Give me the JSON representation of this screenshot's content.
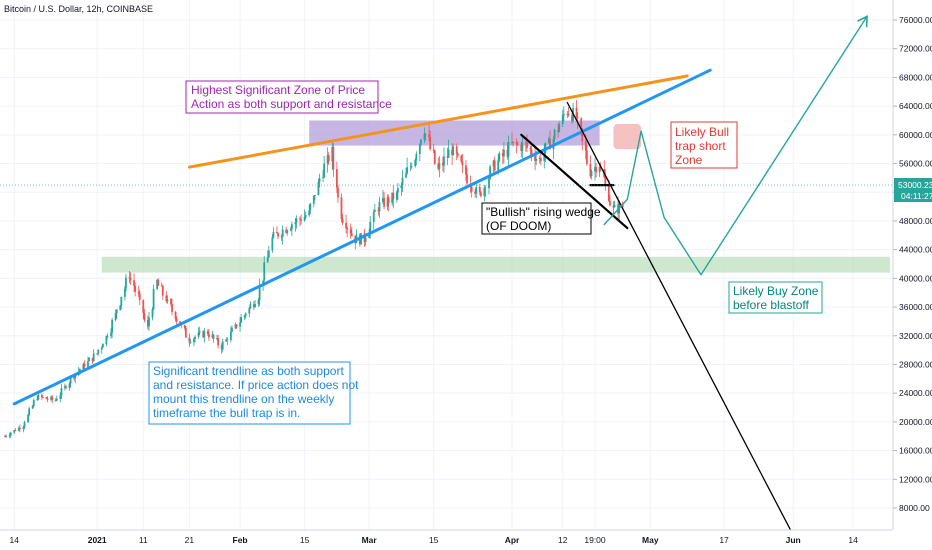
{
  "header": {
    "title": "Bitcoin / U.S. Dollar, 12h, COINBASE"
  },
  "price_axis": {
    "current_price": "53000.23",
    "countdown": "04:11:27",
    "badge_color": "#26a69a"
  },
  "colors": {
    "orange_line": "#f7931a",
    "blue_line": "#2196f3",
    "purple_zone": "#b39ddb",
    "green_zone": "#a5d6a7",
    "red_zone": "#f4b6b6",
    "teal_path": "#26a69a",
    "candle_up": "#26a69a",
    "candle_down": "#ef5350"
  },
  "annotations": {
    "purple": [
      "Highest Significant Zone of Price",
      "Action as both support and resistance"
    ],
    "blue": [
      "Significant trendline as both support",
      "and resistance.  If price action does not",
      "mount this trendline on the weekly",
      "timeframe the bull trap is in."
    ],
    "wedge": [
      "\"Bullish\" rising wedge",
      "(OF DOOM)"
    ],
    "red": [
      "Likely Bull",
      "trap short",
      "Zone"
    ],
    "green": [
      "Likely Buy Zone",
      "before blastoff"
    ]
  },
  "chart_data": {
    "type": "candlestick",
    "symbol": "Bitcoin / U.S. Dollar",
    "interval": "12h",
    "exchange": "COINBASE",
    "ylim": [
      4000,
      80000
    ],
    "y_ticks": [
      8000,
      12000,
      16000,
      20000,
      24000,
      28000,
      32000,
      36000,
      40000,
      44000,
      48000,
      52000,
      56000,
      60000,
      64000,
      68000,
      72000,
      76000
    ],
    "y_tick_labels": [
      "8000.00",
      "12000.00",
      "16000.00",
      "20000.00",
      "24000.00",
      "28000.00",
      "32000.00",
      "36000.00",
      "40000.00",
      "44000.00",
      "48000.00",
      "52000.00",
      "56000.00",
      "60000.00",
      "64000.00",
      "68000.00",
      "72000.00",
      "76000.00"
    ],
    "x_axis": {
      "start_date": "2020-12-12",
      "end_date": "2021-06-22",
      "tick_dates": [
        "2020-12-14",
        "2021-01-01",
        "2021-01-11",
        "2021-01-21",
        "2021-02-01",
        "2021-02-15",
        "2021-03-01",
        "2021-03-15",
        "2021-04-01",
        "2021-04-12",
        "2021-04-19",
        "2021-05-01",
        "2021-05-17",
        "2021-06-01",
        "2021-06-14"
      ],
      "tick_labels": [
        "14",
        "2021",
        "11",
        "21",
        "Feb",
        "15",
        "Mar",
        "15",
        "Apr",
        "12",
        "19:00",
        "May",
        "17",
        "Jun",
        "14"
      ]
    },
    "price_path": [
      [
        "2020-12-12",
        18000
      ],
      [
        "2020-12-16",
        19500
      ],
      [
        "2020-12-19",
        23500
      ],
      [
        "2020-12-23",
        23000
      ],
      [
        "2020-12-27",
        26500
      ],
      [
        "2021-01-01",
        29500
      ],
      [
        "2021-01-04",
        33000
      ],
      [
        "2021-01-08",
        40500
      ],
      [
        "2021-01-10",
        37500
      ],
      [
        "2021-01-12",
        33000
      ],
      [
        "2021-01-14",
        39500
      ],
      [
        "2021-01-17",
        36000
      ],
      [
        "2021-01-21",
        31500
      ],
      [
        "2021-01-25",
        32500
      ],
      [
        "2021-01-28",
        30500
      ],
      [
        "2021-02-01",
        34000
      ],
      [
        "2021-02-05",
        37500
      ],
      [
        "2021-02-08",
        45500
      ],
      [
        "2021-02-12",
        47500
      ],
      [
        "2021-02-16",
        49000
      ],
      [
        "2021-02-19",
        55000
      ],
      [
        "2021-02-21",
        57500
      ],
      [
        "2021-02-23",
        49000
      ],
      [
        "2021-02-26",
        45500
      ],
      [
        "2021-02-28",
        45500
      ],
      [
        "2021-03-03",
        50000
      ],
      [
        "2021-03-07",
        51500
      ],
      [
        "2021-03-11",
        57000
      ],
      [
        "2021-03-13",
        61000
      ],
      [
        "2021-03-16",
        55000
      ],
      [
        "2021-03-19",
        58000
      ],
      [
        "2021-03-22",
        54500
      ],
      [
        "2021-03-25",
        51500
      ],
      [
        "2021-03-28",
        55500
      ],
      [
        "2021-04-01",
        58500
      ],
      [
        "2021-04-04",
        58500
      ],
      [
        "2021-04-07",
        56500
      ],
      [
        "2021-04-10",
        59500
      ],
      [
        "2021-04-13",
        63500
      ],
      [
        "2021-04-15",
        62500
      ],
      [
        "2021-04-18",
        55000
      ],
      [
        "2021-04-20",
        56000
      ],
      [
        "2021-04-23",
        49500
      ],
      [
        "2021-04-25",
        50000
      ]
    ],
    "zones": [
      {
        "label": "purple",
        "from": "2021-02-16",
        "to": "2021-04-20",
        "low": 58500,
        "high": 62000
      },
      {
        "label": "green",
        "from": "2021-01-02",
        "to": "2021-06-22",
        "low": 40800,
        "high": 43000
      },
      {
        "label": "red",
        "from": "2021-04-23",
        "to": "2021-04-29",
        "low": 58000,
        "high": 61500
      }
    ],
    "lines": [
      {
        "name": "orange",
        "points": [
          [
            "2021-01-21",
            55500
          ],
          [
            "2021-05-09",
            68200
          ]
        ]
      },
      {
        "name": "blue",
        "points": [
          [
            "2020-12-14",
            22500
          ],
          [
            "2021-05-14",
            69000
          ]
        ]
      },
      {
        "name": "black_wedge_top",
        "points": [
          [
            "2021-04-03",
            60000
          ],
          [
            "2021-04-26",
            47000
          ]
        ]
      },
      {
        "name": "black_target",
        "points": [
          [
            "2021-04-13",
            64500
          ],
          [
            "2021-06-02",
            3000
          ]
        ]
      },
      {
        "name": "wedge_break",
        "points": [
          [
            "2021-04-18",
            53000
          ],
          [
            "2021-04-23",
            53000
          ]
        ]
      },
      {
        "name": "teal_projection",
        "points": [
          [
            "2021-04-21",
            47500
          ],
          [
            "2021-04-26",
            51000
          ],
          [
            "2021-04-29",
            60500
          ],
          [
            "2021-05-04",
            48500
          ],
          [
            "2021-05-12",
            40500
          ],
          [
            "2021-06-17",
            76500
          ]
        ]
      }
    ]
  }
}
